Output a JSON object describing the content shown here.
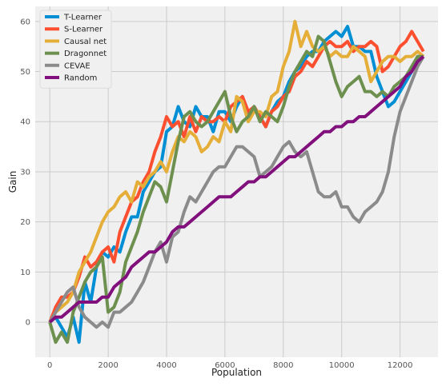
{
  "chart_data": {
    "type": "line",
    "title": "",
    "xlabel": "Population",
    "ylabel": "Gain",
    "xlim": [
      -500,
      13300
    ],
    "ylim": [
      -7,
      63
    ],
    "xticks": [
      0,
      2000,
      4000,
      6000,
      8000,
      10000,
      12000
    ],
    "yticks": [
      0,
      10,
      20,
      30,
      40,
      50,
      60
    ],
    "grid": true,
    "legend_position": "top-left",
    "series": [
      {
        "name": "T-Learner",
        "color": "#008fd5",
        "x": [
          0,
          200,
          400,
          600,
          800,
          1000,
          1200,
          1400,
          1600,
          1800,
          2000,
          2200,
          2400,
          2600,
          2800,
          3000,
          3200,
          3400,
          3600,
          3800,
          4000,
          4200,
          4400,
          4600,
          4800,
          5000,
          5200,
          5400,
          5600,
          5800,
          6000,
          6200,
          6400,
          6600,
          6800,
          7000,
          7200,
          7400,
          7600,
          7800,
          8000,
          8200,
          8400,
          8600,
          8800,
          9000,
          9200,
          9400,
          9600,
          9800,
          10000,
          10200,
          10400,
          10600,
          10800,
          11000,
          11200,
          11400,
          11600,
          11800,
          12000,
          12200,
          12400,
          12600,
          12800
        ],
        "values": [
          0,
          1,
          -1,
          -3,
          1,
          -4,
          8,
          4,
          11,
          14,
          13,
          15,
          14,
          18,
          21,
          21,
          26,
          28,
          30,
          31,
          38,
          39,
          43,
          40,
          39,
          43,
          41,
          41,
          38,
          42,
          42,
          40,
          43,
          45,
          41,
          43,
          41,
          39,
          42,
          44,
          45,
          48,
          50,
          51,
          53,
          54,
          54,
          56,
          57,
          58,
          57,
          59,
          55,
          55,
          54,
          54,
          49,
          46,
          43,
          44,
          46,
          48,
          50,
          53,
          53
        ]
      },
      {
        "name": "S-Learner",
        "color": "#fc4f30",
        "x": [
          0,
          200,
          400,
          600,
          800,
          1000,
          1200,
          1400,
          1600,
          1800,
          2000,
          2200,
          2400,
          2600,
          2800,
          3000,
          3200,
          3400,
          3600,
          3800,
          4000,
          4200,
          4400,
          4600,
          4800,
          5000,
          5200,
          5400,
          5600,
          5800,
          6000,
          6200,
          6400,
          6600,
          6800,
          7000,
          7200,
          7400,
          7600,
          7800,
          8000,
          8200,
          8400,
          8600,
          8800,
          9000,
          9200,
          9400,
          9600,
          9800,
          10000,
          10200,
          10400,
          10600,
          10800,
          11000,
          11200,
          11400,
          11600,
          11800,
          12000,
          12200,
          12400,
          12600,
          12800
        ],
        "values": [
          0,
          3,
          5,
          5,
          6,
          9,
          13,
          11,
          12,
          14,
          15,
          12,
          18,
          21,
          24,
          25,
          28,
          30,
          34,
          37,
          41,
          39,
          40,
          37,
          41,
          38,
          41,
          40,
          40,
          41,
          40,
          43,
          44,
          45,
          42,
          43,
          41,
          39,
          42,
          43,
          45,
          46,
          49,
          50,
          52,
          51,
          53,
          55,
          56,
          55,
          55,
          56,
          54,
          55,
          55,
          56,
          55,
          50,
          51,
          53,
          55,
          56,
          58,
          56,
          54
        ]
      },
      {
        "name": "Causal net",
        "color": "#e5ae38",
        "x": [
          0,
          200,
          400,
          600,
          800,
          1000,
          1200,
          1400,
          1600,
          1800,
          2000,
          2200,
          2400,
          2600,
          2800,
          3000,
          3200,
          3400,
          3600,
          3800,
          4000,
          4200,
          4400,
          4600,
          4800,
          5000,
          5200,
          5400,
          5600,
          5800,
          6000,
          6200,
          6400,
          6600,
          6800,
          7000,
          7200,
          7400,
          7600,
          7800,
          8000,
          8200,
          8400,
          8600,
          8800,
          9000,
          9200,
          9400,
          9600,
          9800,
          10000,
          10200,
          10400,
          10600,
          10800,
          11000,
          11200,
          11400,
          11600,
          11800,
          12000,
          12200,
          12400,
          12600,
          12800
        ],
        "values": [
          0,
          2,
          3,
          4,
          6,
          10,
          12,
          14,
          17,
          20,
          22,
          23,
          25,
          26,
          24,
          28,
          27,
          29,
          30,
          32,
          30,
          34,
          37,
          36,
          38,
          37,
          34,
          35,
          37,
          36,
          40,
          38,
          45,
          44,
          40,
          42,
          42,
          41,
          45,
          46,
          51,
          54,
          60,
          55,
          58,
          55,
          54,
          55,
          53,
          54,
          53,
          53,
          55,
          54,
          53,
          48,
          50,
          52,
          53,
          53,
          52,
          53,
          53,
          54,
          53
        ]
      },
      {
        "name": "Dragonnet",
        "color": "#6d904f",
        "x": [
          0,
          200,
          400,
          600,
          800,
          1000,
          1200,
          1400,
          1600,
          1800,
          2000,
          2200,
          2400,
          2600,
          2800,
          3000,
          3200,
          3400,
          3600,
          3800,
          4000,
          4200,
          4400,
          4600,
          4800,
          5000,
          5200,
          5400,
          5600,
          5800,
          6000,
          6200,
          6400,
          6600,
          6800,
          7000,
          7200,
          7400,
          7600,
          7800,
          8000,
          8200,
          8400,
          8600,
          8800,
          9000,
          9200,
          9400,
          9600,
          9800,
          10000,
          10200,
          10400,
          10600,
          10800,
          11000,
          11200,
          11400,
          11600,
          11800,
          12000,
          12200,
          12400,
          12600,
          12800
        ],
        "values": [
          0,
          -4,
          -2,
          -4,
          2,
          5,
          8,
          10,
          11,
          13,
          2,
          3,
          6,
          12,
          15,
          18,
          22,
          25,
          28,
          27,
          24,
          30,
          36,
          41,
          42,
          40,
          39,
          40,
          42,
          44,
          46,
          41,
          38,
          40,
          41,
          43,
          40,
          42,
          41,
          40,
          43,
          47,
          50,
          52,
          54,
          53,
          57,
          56,
          52,
          48,
          45,
          47,
          48,
          49,
          46,
          46,
          45,
          46,
          45,
          47,
          48,
          49,
          51,
          53,
          53
        ]
      },
      {
        "name": "CEVAE",
        "color": "#8b8b8b",
        "x": [
          0,
          200,
          400,
          600,
          800,
          1000,
          1200,
          1400,
          1600,
          1800,
          2000,
          2200,
          2400,
          2600,
          2800,
          3000,
          3200,
          3400,
          3600,
          3800,
          4000,
          4200,
          4400,
          4600,
          4800,
          5000,
          5200,
          5400,
          5600,
          5800,
          6000,
          6200,
          6400,
          6600,
          6800,
          7000,
          7200,
          7400,
          7600,
          7800,
          8000,
          8200,
          8400,
          8600,
          8800,
          9000,
          9200,
          9400,
          9600,
          9800,
          10000,
          10200,
          10400,
          10600,
          10800,
          11000,
          11200,
          11400,
          11600,
          11800,
          12000,
          12200,
          12400,
          12600,
          12800
        ],
        "values": [
          0,
          2,
          4,
          6,
          7,
          3,
          1,
          0,
          -1,
          0,
          -1,
          2,
          2,
          3,
          4,
          6,
          8,
          11,
          14,
          16,
          12,
          17,
          18,
          22,
          25,
          24,
          26,
          28,
          30,
          31,
          31,
          33,
          35,
          35,
          34,
          33,
          29,
          30,
          31,
          33,
          35,
          36,
          34,
          33,
          34,
          30,
          26,
          25,
          25,
          26,
          23,
          23,
          21,
          20,
          22,
          23,
          24,
          26,
          30,
          37,
          42,
          45,
          48,
          51,
          53
        ]
      },
      {
        "name": "Random",
        "color": "#810f7c",
        "x": [
          0,
          200,
          400,
          600,
          800,
          1000,
          1200,
          1400,
          1600,
          1800,
          2000,
          2200,
          2400,
          2600,
          2800,
          3000,
          3200,
          3400,
          3600,
          3800,
          4000,
          4200,
          4400,
          4600,
          4800,
          5000,
          5200,
          5400,
          5600,
          5800,
          6000,
          6200,
          6400,
          6600,
          6800,
          7000,
          7200,
          7400,
          7600,
          7800,
          8000,
          8200,
          8400,
          8600,
          8800,
          9000,
          9200,
          9400,
          9600,
          9800,
          10000,
          10200,
          10400,
          10600,
          10800,
          11000,
          11200,
          11400,
          11600,
          11800,
          12000,
          12200,
          12400,
          12600,
          12800
        ],
        "values": [
          0,
          1,
          1,
          2,
          3,
          4,
          4,
          4,
          4,
          5,
          5,
          7,
          8,
          9,
          11,
          12,
          13,
          14,
          14,
          15,
          16,
          18,
          19,
          19,
          20,
          21,
          22,
          23,
          24,
          25,
          25,
          25,
          26,
          27,
          28,
          28,
          29,
          29,
          30,
          31,
          32,
          33,
          33,
          34,
          35,
          36,
          37,
          38,
          38,
          39,
          39,
          40,
          40,
          41,
          41,
          42,
          43,
          44,
          45,
          46,
          47,
          49,
          50,
          52,
          53
        ]
      }
    ]
  }
}
